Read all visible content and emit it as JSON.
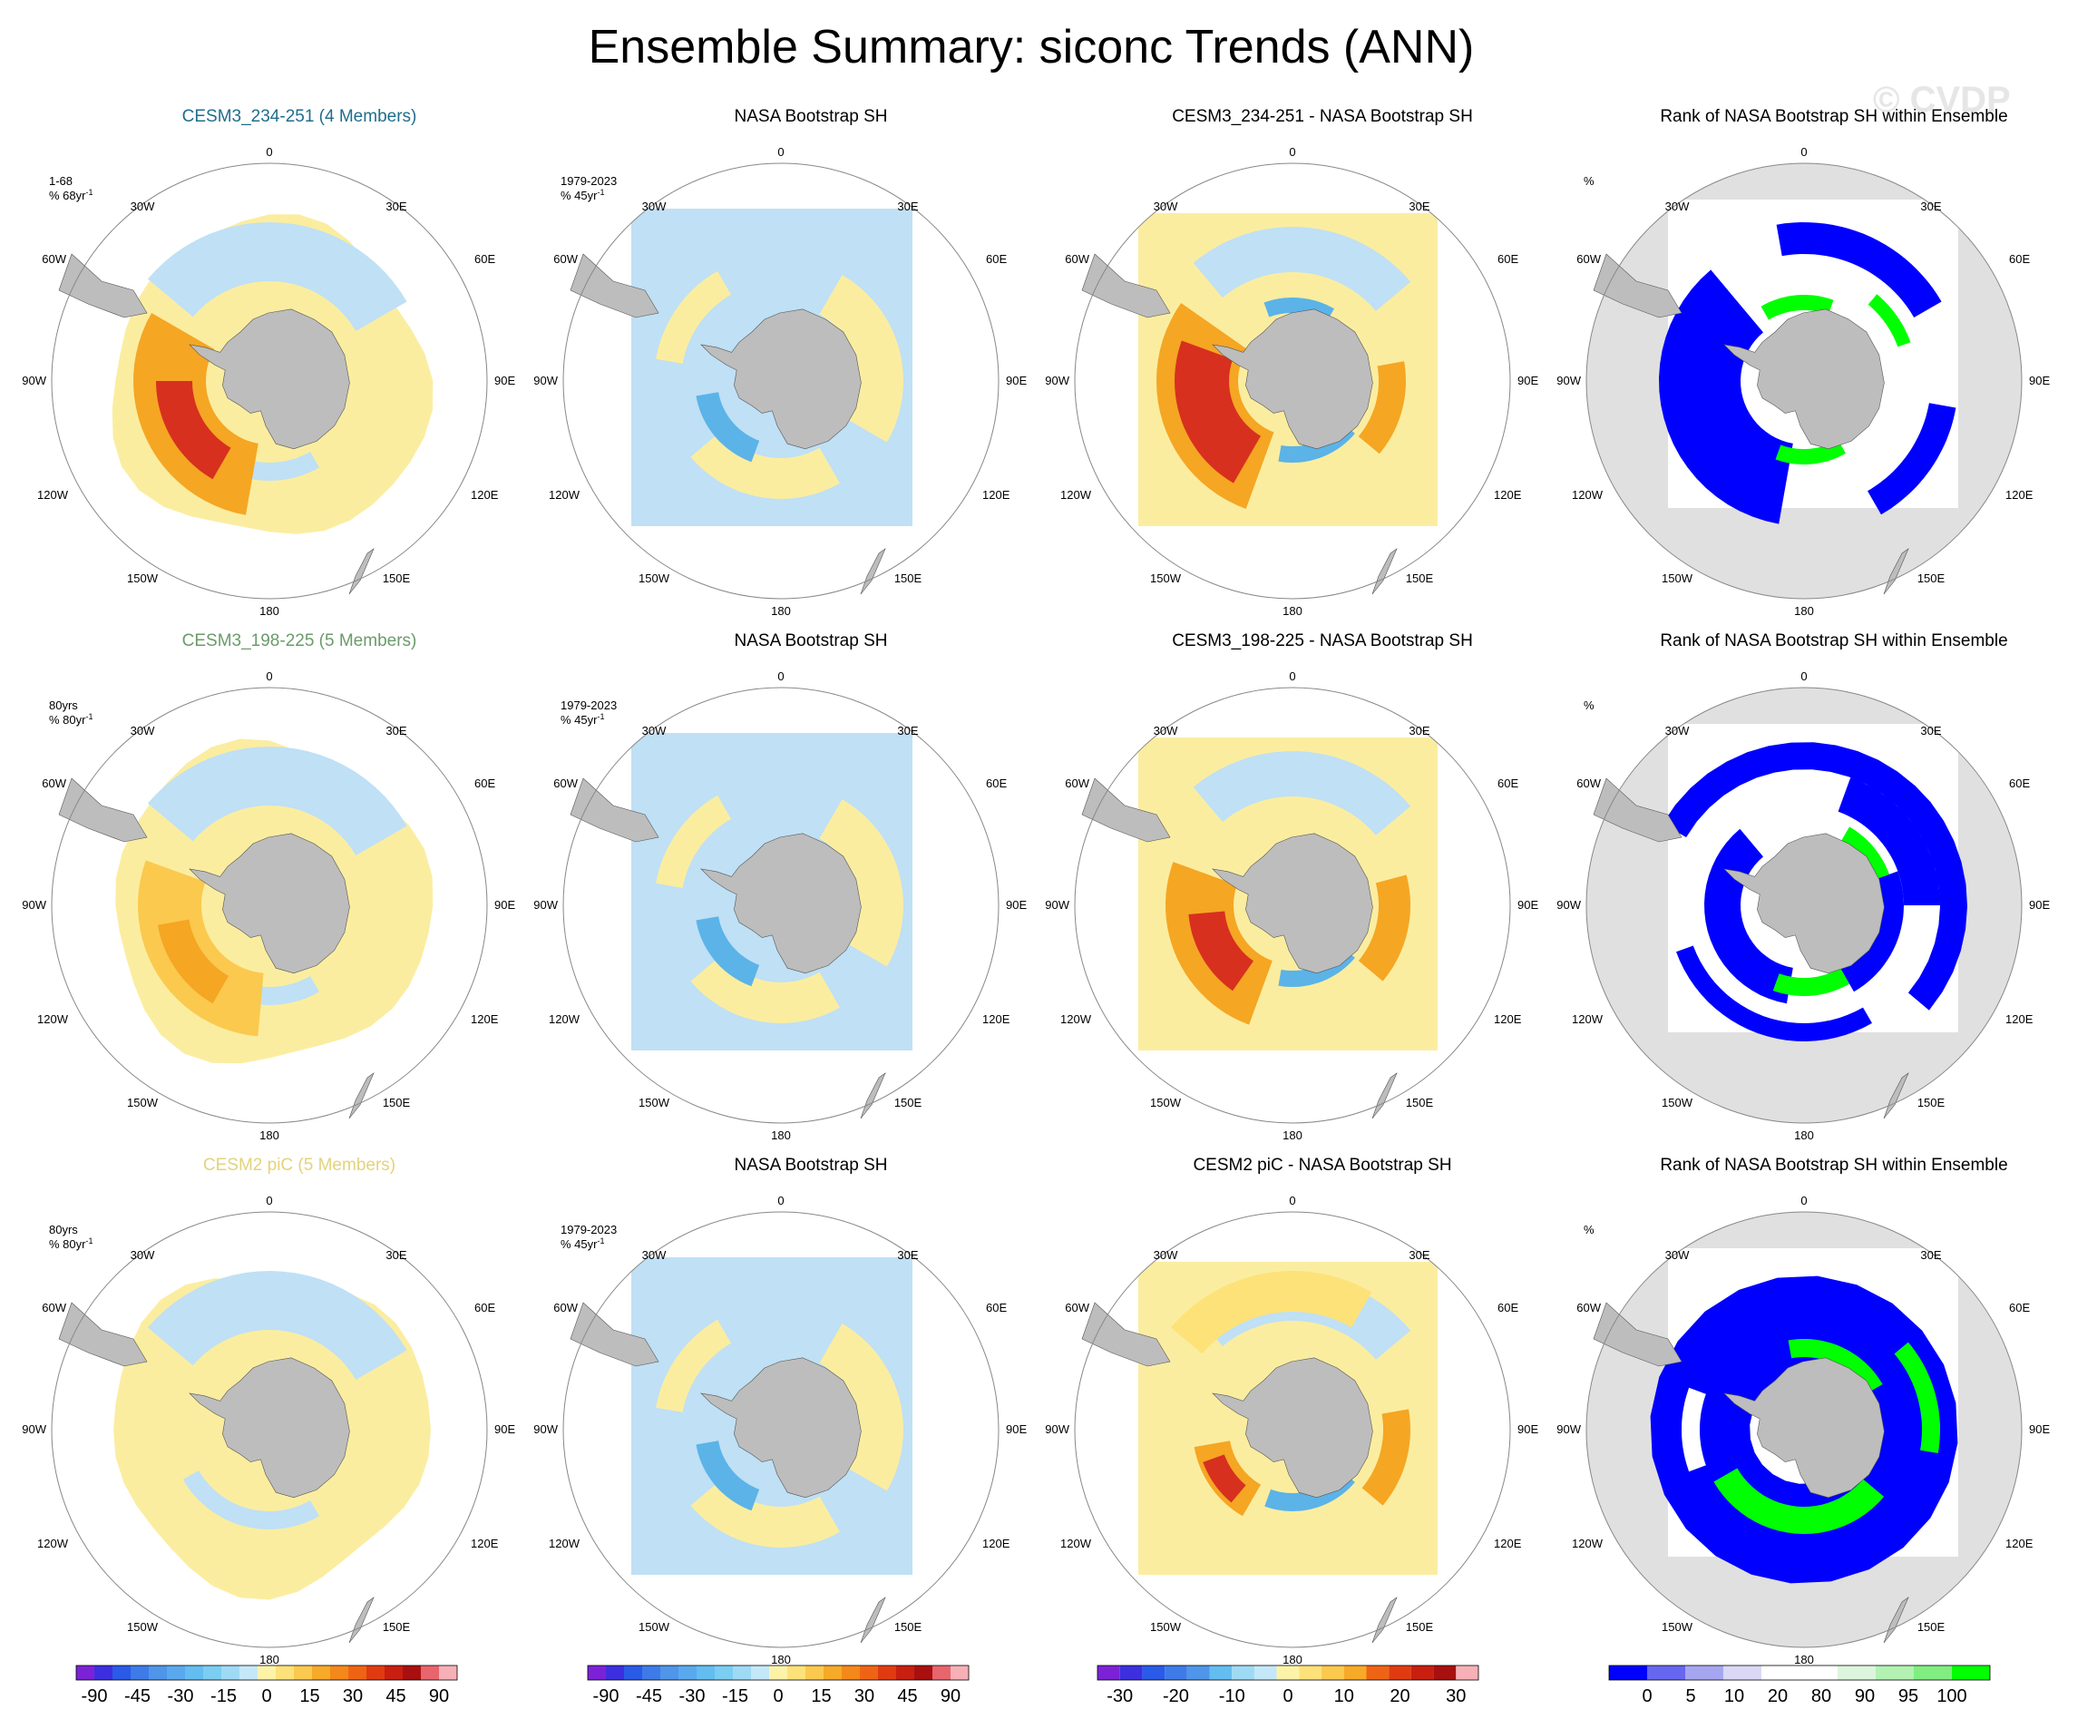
{
  "title": "Ensemble Summary: siconc Trends (ANN)",
  "watermark": "© CVDP",
  "colors": {
    "land": "#bdbdbd",
    "coast_outline": "#555555",
    "title_row1": "#1f6e8c",
    "title_row2": "#6b9b6b",
    "title_row3": "#e3d37c",
    "yellow": "#fbeda0",
    "lightblue": "#bfe0f5",
    "blue": "#5bb3e8",
    "orange": "#f5a623",
    "red": "#d7301f",
    "rank_blue": "#0000ff",
    "rank_green": "#00ff00",
    "rank_gray": "#e0e0e0"
  },
  "map_labels": {
    "top": "0",
    "bottom": "180",
    "left_upper": "30W",
    "right_upper": "30E",
    "left_mid_upper": "60W",
    "right_mid_upper": "60E",
    "left_mid": "90W",
    "right_mid": "90E",
    "left_mid_lower": "120W",
    "right_mid_lower": "120E",
    "left_lower": "150W",
    "right_lower": "150E"
  },
  "rows": [
    {
      "panels": [
        {
          "title": "CESM3_234-251 (4 Members)",
          "title_color": "#1f6e8c",
          "note1": "1-68",
          "note2": "% 68yr",
          "note2_sup": "-1",
          "kind": "model_warm"
        },
        {
          "title": "NASA Bootstrap SH",
          "note1": "1979-2023",
          "note2": "% 45yr",
          "note2_sup": "-1",
          "kind": "obs"
        },
        {
          "title": "CESM3_234-251 - NASA Bootstrap SH",
          "kind": "diff_strong"
        },
        {
          "title": "Rank of NASA Bootstrap SH within Ensemble",
          "note1": "%",
          "kind": "rank_blue"
        }
      ]
    },
    {
      "panels": [
        {
          "title": "CESM3_198-225 (5 Members)",
          "title_color": "#6b9b6b",
          "note1": "80yrs",
          "note2": "% 80yr",
          "note2_sup": "-1",
          "kind": "model_mid"
        },
        {
          "title": "NASA Bootstrap SH",
          "note1": "1979-2023",
          "note2": "% 45yr",
          "note2_sup": "-1",
          "kind": "obs"
        },
        {
          "title": "CESM3_198-225 - NASA Bootstrap SH",
          "kind": "diff_mid"
        },
        {
          "title": "Rank of NASA Bootstrap SH within Ensemble",
          "note1": "%",
          "kind": "rank_mixed"
        }
      ]
    },
    {
      "panels": [
        {
          "title": "CESM2 piC (5 Members)",
          "title_color": "#e3d37c",
          "note1": "80yrs",
          "note2": "% 80yr",
          "note2_sup": "-1",
          "kind": "model_flat"
        },
        {
          "title": "NASA Bootstrap SH",
          "note1": "1979-2023",
          "note2": "% 45yr",
          "note2_sup": "-1",
          "kind": "obs"
        },
        {
          "title": "CESM2 piC - NASA Bootstrap SH",
          "kind": "diff_weak"
        },
        {
          "title": "Rank of NASA Bootstrap SH within Ensemble",
          "note1": "%",
          "kind": "rank_green"
        }
      ]
    }
  ],
  "colorbars": [
    {
      "colors": [
        "#7b22d6",
        "#3b2fe0",
        "#2a5ae8",
        "#3e7be8",
        "#4f95ea",
        "#5aa9ee",
        "#63bdf0",
        "#7bcdf2",
        "#9fdaf4",
        "#c4e8f7",
        "#fdf3a8",
        "#fde27a",
        "#fbc94e",
        "#f7a928",
        "#f4881a",
        "#ef6414",
        "#e03b10",
        "#c81f10",
        "#a8100f",
        "#e8656d",
        "#f6b0b6"
      ],
      "labels": [
        "-90",
        "-45",
        "-30",
        "-15",
        "0",
        "15",
        "30",
        "45",
        "90"
      ]
    },
    {
      "colors": [
        "#7b22d6",
        "#3b2fe0",
        "#2a5ae8",
        "#3e7be8",
        "#4f95ea",
        "#5aa9ee",
        "#63bdf0",
        "#7bcdf2",
        "#9fdaf4",
        "#c4e8f7",
        "#fdf3a8",
        "#fde27a",
        "#fbc94e",
        "#f7a928",
        "#f4881a",
        "#ef6414",
        "#e03b10",
        "#c81f10",
        "#a8100f",
        "#e8656d",
        "#f6b0b6"
      ],
      "labels": [
        "-90",
        "-45",
        "-30",
        "-15",
        "0",
        "15",
        "30",
        "45",
        "90"
      ]
    },
    {
      "colors": [
        "#7b22d6",
        "#3b2fe0",
        "#2a5ae8",
        "#3e7be8",
        "#4f95ea",
        "#63bdf0",
        "#9fdaf4",
        "#c4e8f7",
        "#fdf3a8",
        "#fde27a",
        "#fbc94e",
        "#f7a928",
        "#ef6414",
        "#e03b10",
        "#c81f10",
        "#a8100f",
        "#f6b0b6"
      ],
      "labels": [
        "-30",
        "-20",
        "-10",
        "0",
        "10",
        "20",
        "30"
      ]
    },
    {
      "colors": [
        "#0000ff",
        "#6666f0",
        "#a6a6f0",
        "#d9d9f5",
        "#ffffff",
        "#ffffff",
        "#ddf5dd",
        "#b3f2b3",
        "#80ee80",
        "#00ff00"
      ],
      "labels": [
        "0",
        "5",
        "10",
        "20",
        "80",
        "90",
        "95",
        "100"
      ]
    }
  ]
}
